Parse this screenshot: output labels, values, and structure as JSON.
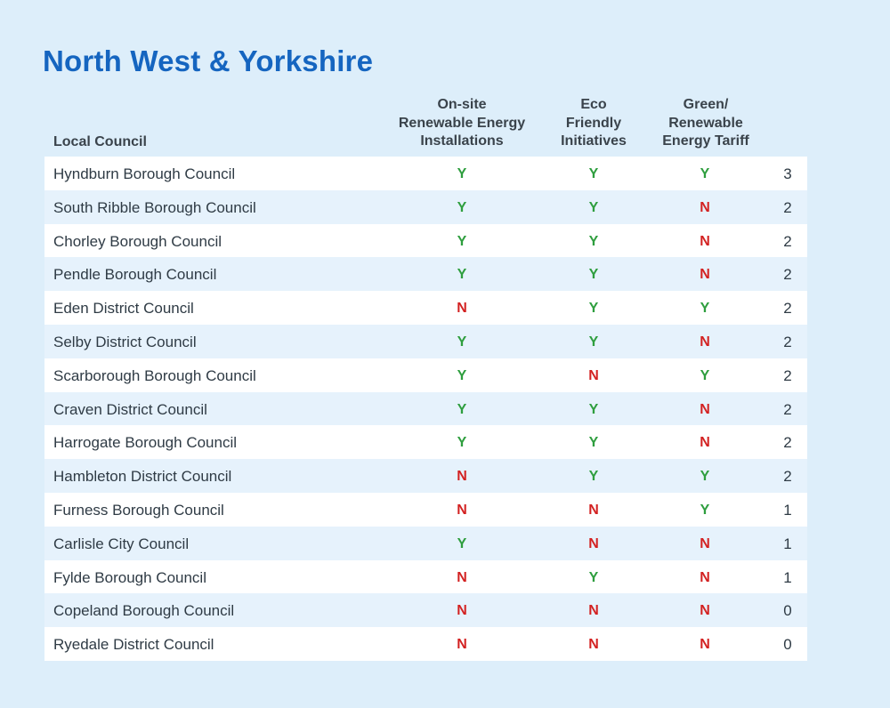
{
  "title": "North West & Yorkshire",
  "colors": {
    "title": "#1565c0",
    "yes": "#2e9e3e",
    "no": "#d32222",
    "background": "#ddeefa",
    "row_white": "#ffffff",
    "row_blue": "#e6f2fc"
  },
  "headers": {
    "council": "Local Council",
    "onsite": "On-site\nRenewable Energy\nInstallations",
    "eco": "Eco\nFriendly\nInitiatives",
    "green": "Green/\nRenewable\nEnergy Tariff",
    "score": ""
  },
  "rows": [
    {
      "council": "Hyndburn Borough Council",
      "onsite": "Y",
      "eco": "Y",
      "green": "Y",
      "score": "3"
    },
    {
      "council": "South Ribble Borough Council",
      "onsite": "Y",
      "eco": "Y",
      "green": "N",
      "score": "2"
    },
    {
      "council": "Chorley Borough Council",
      "onsite": "Y",
      "eco": "Y",
      "green": "N",
      "score": "2"
    },
    {
      "council": "Pendle Borough Council",
      "onsite": "Y",
      "eco": "Y",
      "green": "N",
      "score": "2"
    },
    {
      "council": "Eden District Council",
      "onsite": "N",
      "eco": "Y",
      "green": "Y",
      "score": "2"
    },
    {
      "council": "Selby District Council",
      "onsite": "Y",
      "eco": "Y",
      "green": "N",
      "score": "2"
    },
    {
      "council": "Scarborough Borough Council",
      "onsite": "Y",
      "eco": "N",
      "green": "Y",
      "score": "2"
    },
    {
      "council": "Craven District Council",
      "onsite": "Y",
      "eco": "Y",
      "green": "N",
      "score": "2"
    },
    {
      "council": "Harrogate Borough Council",
      "onsite": "Y",
      "eco": "Y",
      "green": "N",
      "score": "2"
    },
    {
      "council": "Hambleton District Council",
      "onsite": "N",
      "eco": "Y",
      "green": "Y",
      "score": "2"
    },
    {
      "council": "Furness Borough Council",
      "onsite": "N",
      "eco": "N",
      "green": "Y",
      "score": "1"
    },
    {
      "council": "Carlisle City Council",
      "onsite": "Y",
      "eco": "N",
      "green": "N",
      "score": "1"
    },
    {
      "council": "Fylde Borough Council",
      "onsite": "N",
      "eco": "Y",
      "green": "N",
      "score": "1"
    },
    {
      "council": "Copeland Borough Council",
      "onsite": "N",
      "eco": "N",
      "green": "N",
      "score": "0"
    },
    {
      "council": "Ryedale District Council",
      "onsite": "N",
      "eco": "N",
      "green": "N",
      "score": "0"
    }
  ]
}
